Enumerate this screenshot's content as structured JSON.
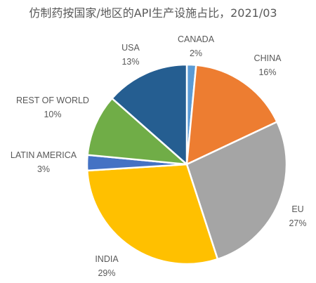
{
  "chart_data": {
    "type": "pie",
    "title": "仿制药按国家/地区的API生产设施占比，2021/03",
    "start_angle_deg": 0,
    "direction": "clockwise",
    "slices": [
      {
        "label": "CANADA",
        "value_label": "2%",
        "value": 1.5,
        "color": "#5B9BD5"
      },
      {
        "label": "CHINA",
        "value_label": "16%",
        "value": 16.5,
        "color": "#ED7D31"
      },
      {
        "label": "EU",
        "value_label": "27%",
        "value": 27.0,
        "color": "#A5A5A5"
      },
      {
        "label": "INDIA",
        "value_label": "29%",
        "value": 29.0,
        "color": "#FFC000"
      },
      {
        "label": "LATIN AMERICA",
        "value_label": "3%",
        "value": 2.5,
        "color": "#4472C4"
      },
      {
        "label": "REST OF WORLD",
        "value_label": "10%",
        "value": 10.0,
        "color": "#70AD47"
      },
      {
        "label": "USA",
        "value_label": "13%",
        "value": 13.5,
        "color": "#255E91"
      }
    ],
    "legend": "none"
  }
}
